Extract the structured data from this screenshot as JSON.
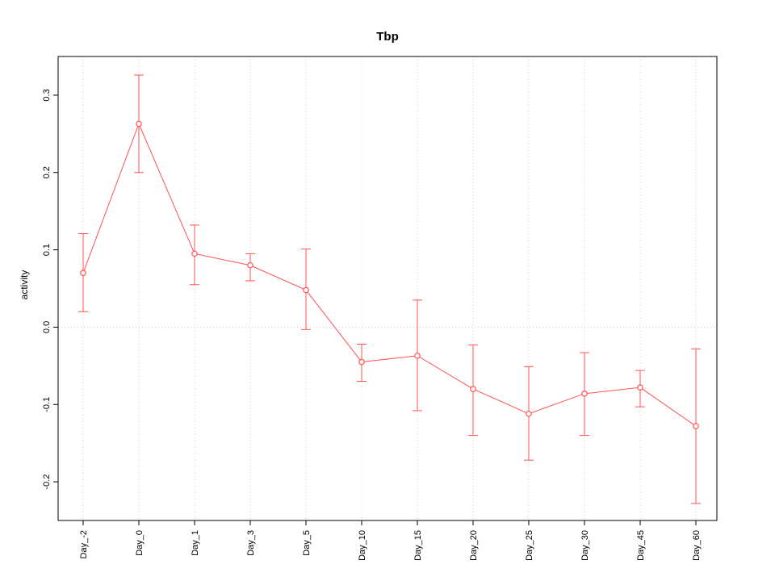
{
  "chart_data": {
    "type": "line",
    "title": "Tbp",
    "xlabel": "",
    "ylabel": "activity",
    "categories": [
      "Day_-2",
      "Day_0",
      "Day_1",
      "Day_3",
      "Day_5",
      "Day_10",
      "Day_15",
      "Day_20",
      "Day_25",
      "Day_30",
      "Day_45",
      "Day_60"
    ],
    "series": [
      {
        "name": "Tbp",
        "values": [
          0.07,
          0.263,
          0.095,
          0.08,
          0.048,
          -0.045,
          -0.037,
          -0.08,
          -0.112,
          -0.086,
          -0.078,
          -0.128
        ],
        "error_low": [
          0.02,
          0.2,
          0.055,
          0.06,
          -0.003,
          -0.07,
          -0.108,
          -0.14,
          -0.172,
          -0.14,
          -0.103,
          -0.228
        ],
        "error_high": [
          0.121,
          0.326,
          0.132,
          0.095,
          0.101,
          -0.022,
          0.035,
          -0.023,
          -0.051,
          -0.033,
          -0.056,
          -0.028
        ]
      }
    ],
    "ytick_labels": [
      "-0.2",
      "-0.1",
      "0.0",
      "0.1",
      "0.2",
      "0.3"
    ],
    "ytick_values": [
      -0.2,
      -0.1,
      0.0,
      0.1,
      0.2,
      0.3
    ],
    "ylim": [
      -0.25,
      0.35
    ],
    "legend": "none",
    "grid": "dotted vertical line at each category; dotted horizontal line at y=0",
    "marker": "open-circle",
    "colors": {
      "series": "#ff5252",
      "grid": "#d6d6d6",
      "zero_line": "#c9c9c9",
      "axis": "#000000",
      "background": "#ffffff"
    }
  }
}
